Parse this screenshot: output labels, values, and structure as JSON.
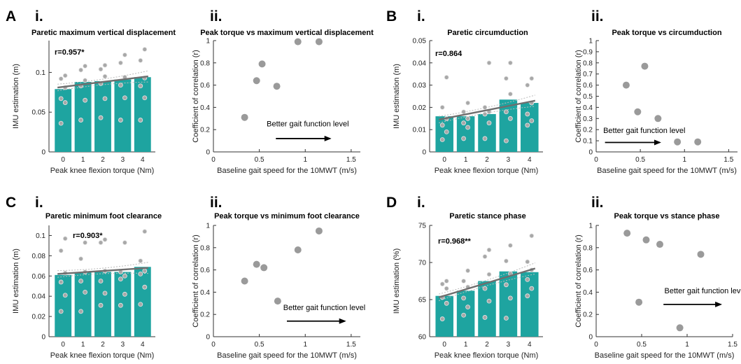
{
  "chart_data": [
    {
      "id": "A-i",
      "type": "bar",
      "panel": "A",
      "sub": "i.",
      "title": "Paretic maximum vertical displacement",
      "xlabel": "Peak knee flexion torque (Nm)",
      "ylabel": "IMU estimation (m)",
      "categories": [
        "0",
        "1",
        "2",
        "3",
        "4"
      ],
      "values": [
        0.079,
        0.088,
        0.089,
        0.091,
        0.094
      ],
      "points": [
        [
          0.036,
          0.062,
          0.067,
          0.081,
          0.092,
          0.096
        ],
        [
          0.04,
          0.065,
          0.083,
          0.09,
          0.103,
          0.108
        ],
        [
          0.043,
          0.067,
          0.086,
          0.095,
          0.104,
          0.109
        ],
        [
          0.04,
          0.068,
          0.084,
          0.094,
          0.112,
          0.122
        ],
        [
          0.04,
          0.068,
          0.083,
          0.093,
          0.115,
          0.129
        ]
      ],
      "fit": [
        0.081,
        0.095
      ],
      "ylim": [
        0,
        0.14
      ],
      "yticks": [
        0,
        0.05,
        0.1
      ],
      "ytick_labels": [
        "0",
        "0.05",
        "0.1"
      ],
      "r_label": "r=0.957*"
    },
    {
      "id": "A-ii",
      "type": "scatter",
      "sub": "ii.",
      "title": "Peak torque vs maximum vertical displacement",
      "xlabel": "Baseline gait speed for the 10MWT (m/s)",
      "ylabel": "Coefficient of correlation (r)",
      "x": [
        0.34,
        0.47,
        0.53,
        0.69,
        0.92,
        1.15
      ],
      "y": [
        0.31,
        0.64,
        0.79,
        0.59,
        0.99,
        0.99
      ],
      "xlim": [
        0,
        1.6
      ],
      "ylim": [
        0,
        1
      ],
      "xticks": [
        0,
        0.5,
        1,
        1.5
      ],
      "xtick_labels": [
        "0",
        "0.5",
        "1",
        "1.5"
      ],
      "yticks": [
        0,
        0.2,
        0.4,
        0.6,
        0.8,
        1
      ],
      "ytick_labels": [
        "0",
        "0.2",
        "0.4",
        "0.6",
        "0.8",
        "1"
      ],
      "annotation": "Better gait function level",
      "arrow": [
        0.68,
        1.27,
        0.12
      ],
      "annot_pos": [
        0.58,
        0.23
      ]
    },
    {
      "id": "B-i",
      "type": "bar",
      "panel": "B",
      "sub": "i.",
      "title": "Paretic circumduction",
      "xlabel": "Peak knee flexion torque (Nm)",
      "ylabel": "IMU estimation (m)",
      "categories": [
        "0",
        "1",
        "2",
        "3",
        "4"
      ],
      "values": [
        0.016,
        0.016,
        0.017,
        0.0235,
        0.022
      ],
      "points": [
        [
          0.0055,
          0.009,
          0.012,
          0.015,
          0.02,
          0.0335
        ],
        [
          0.006,
          0.011,
          0.013,
          0.015,
          0.018,
          0.022
        ],
        [
          0.006,
          0.013,
          0.017,
          0.018,
          0.02,
          0.04
        ],
        [
          0.005,
          0.015,
          0.018,
          0.026,
          0.033,
          0.04
        ],
        [
          0.012,
          0.014,
          0.017,
          0.022,
          0.03,
          0.033
        ]
      ],
      "fit": [
        0.0145,
        0.023
      ],
      "ylim": [
        0,
        0.05
      ],
      "yticks": [
        0,
        0.01,
        0.02,
        0.03,
        0.04,
        0.05
      ],
      "ytick_labels": [
        "0",
        "0.01",
        "0.02",
        "0.03",
        "0.04",
        "0.05"
      ],
      "r_label": "r=0.864"
    },
    {
      "id": "B-ii",
      "type": "scatter",
      "sub": "ii.",
      "title": "Peak torque vs circumduction",
      "xlabel": "Baseline gait speed for the 10MWT (m/s)",
      "ylabel": "Coefficient of correlation (r)",
      "x": [
        0.34,
        0.47,
        0.55,
        0.7,
        0.92,
        1.15
      ],
      "y": [
        0.6,
        0.36,
        0.77,
        0.3,
        0.09,
        0.09
      ],
      "xlim": [
        0,
        1.6
      ],
      "ylim": [
        0,
        1
      ],
      "xticks": [
        0,
        0.5,
        1,
        1.5
      ],
      "xtick_labels": [
        "0",
        "0.5",
        "1",
        "1.5"
      ],
      "yticks": [
        0,
        0.1,
        0.2,
        0.3,
        0.4,
        0.5,
        0.6,
        0.7,
        0.8,
        0.9,
        1
      ],
      "ytick_labels": [
        "0",
        "0.1",
        "0.2",
        "0.3",
        "0.4",
        "0.5",
        "0.6",
        "0.7",
        "0.8",
        "0.9",
        "1"
      ],
      "annotation": "Better gait function level",
      "arrow": [
        0.1,
        0.72,
        0.085
      ],
      "annot_pos": [
        0.08,
        0.17
      ]
    },
    {
      "id": "C-i",
      "type": "bar",
      "panel": "C",
      "sub": "i.",
      "title": "Paretic minimum foot clearance",
      "xlabel": "Peak knee flexion torque (Nm)",
      "ylabel": "IMU estimation (m)",
      "categories": [
        "0",
        "1",
        "2",
        "3",
        "4"
      ],
      "values": [
        0.061,
        0.064,
        0.064,
        0.064,
        0.069
      ],
      "points": [
        [
          0.025,
          0.041,
          0.054,
          0.063,
          0.085,
          0.097
        ],
        [
          0.025,
          0.044,
          0.055,
          0.064,
          0.077,
          0.093
        ],
        [
          0.031,
          0.043,
          0.055,
          0.065,
          0.093,
          0.096
        ],
        [
          0.031,
          0.042,
          0.057,
          0.06,
          0.064,
          0.093
        ],
        [
          0.032,
          0.049,
          0.062,
          0.065,
          0.075,
          0.104
        ]
      ],
      "fit": [
        0.062,
        0.068
      ],
      "ylim": [
        0,
        0.11
      ],
      "yticks": [
        0,
        0.02,
        0.04,
        0.06,
        0.08,
        0.1
      ],
      "ytick_labels": [
        "0",
        "0.02",
        "0.04",
        "0.06",
        "0.08",
        "0.1"
      ],
      "r_label": "r=0.903*"
    },
    {
      "id": "C-ii",
      "type": "scatter",
      "sub": "ii.",
      "title": "Peak torque vs minimum foot clearance",
      "xlabel": "Baseline gait speed for the 10MWT (m/s)",
      "ylabel": "Coefficient of correlation (r)",
      "x": [
        0.34,
        0.47,
        0.55,
        0.7,
        0.92,
        1.15
      ],
      "y": [
        0.5,
        0.65,
        0.62,
        0.32,
        0.78,
        0.95
      ],
      "xlim": [
        0,
        1.6
      ],
      "ylim": [
        0,
        1
      ],
      "xticks": [
        0,
        0.5,
        1,
        1.5
      ],
      "xtick_labels": [
        "0",
        "0.5",
        "1",
        "1.5"
      ],
      "yticks": [
        0,
        0.2,
        0.4,
        0.6,
        0.8,
        1
      ],
      "ytick_labels": [
        "0",
        "0.2",
        "0.4",
        "0.6",
        "0.8",
        "1"
      ],
      "annotation": "Better gait function level",
      "arrow": [
        0.8,
        1.43,
        0.14
      ],
      "annot_pos": [
        0.76,
        0.24
      ]
    },
    {
      "id": "D-i",
      "type": "bar",
      "panel": "D",
      "sub": "i.",
      "title": "Paretic stance phase",
      "xlabel": "Peak knee flexion torque (Nm)",
      "ylabel": "IMU estimation (%)",
      "categories": [
        "0",
        "1",
        "2",
        "3",
        "4"
      ],
      "values": [
        65.5,
        66.2,
        67.5,
        68.8,
        68.7
      ],
      "points": [
        [
          62.4,
          64.5,
          65.3,
          66.5,
          67.1,
          67.5
        ],
        [
          62.9,
          64.0,
          65.2,
          66.7,
          67.5,
          68.9
        ],
        [
          62.6,
          64.8,
          66.5,
          68.4,
          70.8,
          71.7
        ],
        [
          62.5,
          65.2,
          67.0,
          68.5,
          70.2,
          72.3
        ],
        [
          65.5,
          66.5,
          67.7,
          69.0,
          70.1,
          73.6
        ]
      ],
      "fit": [
        65.3,
        69.2
      ],
      "ylim": [
        60,
        75
      ],
      "yticks": [
        60,
        65,
        70,
        75
      ],
      "ytick_labels": [
        "60",
        "65",
        "70",
        "75"
      ],
      "r_label": "r=0.968**"
    },
    {
      "id": "D-ii",
      "type": "scatter",
      "sub": "ii.",
      "title": "Peak torque vs stance phase",
      "xlabel": "Baseline gait speed for the 10MWT (m/s)",
      "ylabel": "Coefficient of correlation (r)",
      "x": [
        0.34,
        0.47,
        0.55,
        0.7,
        0.92,
        1.15
      ],
      "y": [
        0.93,
        0.31,
        0.87,
        0.83,
        0.08,
        0.74
      ],
      "xlim": [
        0,
        1.5
      ],
      "ylim": [
        0,
        1
      ],
      "xticks": [
        0,
        0.5,
        1,
        1.5
      ],
      "xtick_labels": [
        "0",
        "0.5",
        "1",
        "1.5"
      ],
      "yticks": [
        0,
        0.2,
        0.4,
        0.6,
        0.8,
        1
      ],
      "ytick_labels": [
        "0",
        "0.2",
        "0.4",
        "0.6",
        "0.8",
        "1"
      ],
      "annotation": "Better gait function level",
      "arrow": [
        0.74,
        1.37,
        0.29
      ],
      "annot_pos": [
        0.75,
        0.39
      ]
    }
  ]
}
